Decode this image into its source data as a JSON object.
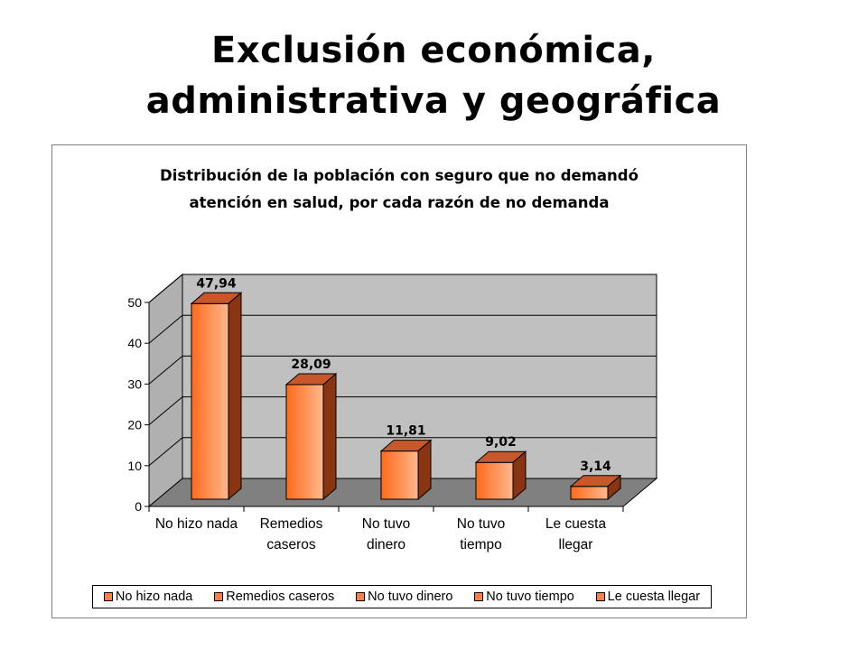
{
  "slide": {
    "title_line1": "Exclusión económica,",
    "title_line2": "administrativa y geográfica"
  },
  "chart_data": {
    "type": "bar",
    "title": "Distribución de la población con seguro que no demandó atención en salud, por cada razón de no demanda",
    "title_line1": "Distribución de la población con seguro que no demandó",
    "title_line2": "atención en salud, por cada razón de no demanda",
    "categories": [
      "No hizo nada",
      "Remedios caseros",
      "No tuvo dinero",
      "No tuvo tiempo",
      "Le cuesta llegar"
    ],
    "category_lines": [
      [
        "No hizo nada"
      ],
      [
        "Remedios",
        "caseros"
      ],
      [
        "No tuvo",
        "dinero"
      ],
      [
        "No tuvo",
        "tiempo"
      ],
      [
        "Le cuesta",
        "llegar"
      ]
    ],
    "values": [
      47.94,
      28.09,
      11.81,
      9.02,
      3.14
    ],
    "data_labels": [
      "47,94",
      "28,09",
      "11,81",
      "9,02",
      "3,14"
    ],
    "ylim": [
      0,
      50
    ],
    "yticks": [
      0,
      10,
      20,
      30,
      40,
      50
    ],
    "grid": true,
    "legend_position": "bottom",
    "legend": [
      "No hizo nada",
      "Remedios caseros",
      "No tuvo dinero",
      "No tuvo tiempo",
      "Le cuesta llegar"
    ],
    "colors": {
      "bar_front_light": "#ffb890",
      "bar_front_dark": "#ff6a1a",
      "bar_top": "#c8582a",
      "bar_side": "#8a3512",
      "plot_wall": "#c0c0c0",
      "plot_floor": "#808080",
      "plot_side": "#b0b0b0"
    }
  }
}
